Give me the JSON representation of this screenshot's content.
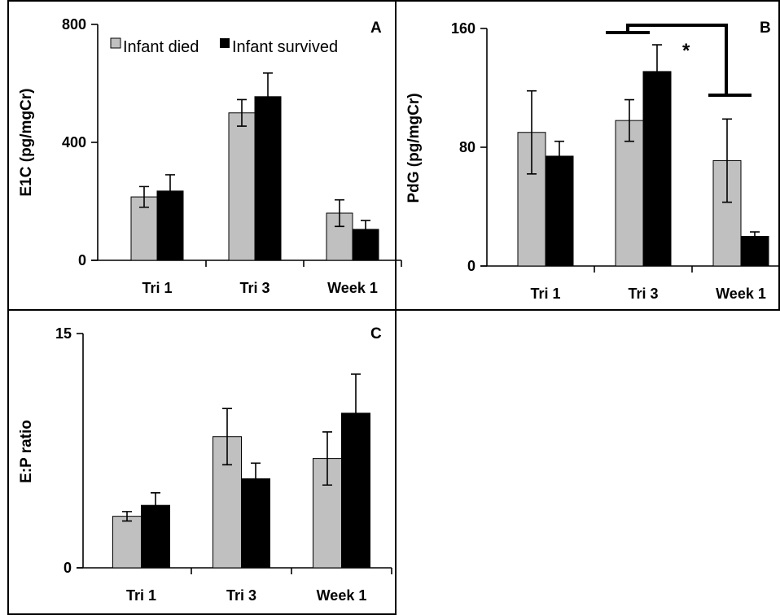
{
  "chart_data": [
    {
      "type": "bar",
      "panel_label": "A",
      "title": "",
      "xlabel": "",
      "ylabel": "E1C (pg/mgCr)",
      "ylim": [
        0,
        800
      ],
      "yticks": [
        "0",
        "400",
        "800"
      ],
      "categories": [
        "Tri 1",
        "Tri 3",
        "Week 1"
      ],
      "legend": {
        "placement": "top",
        "entries": [
          "Infant died",
          "Infant survived"
        ]
      },
      "series": [
        {
          "name": "Infant died",
          "color": "#c0c0c0",
          "values": [
            215,
            500,
            160
          ],
          "errors": [
            35,
            45,
            45
          ]
        },
        {
          "name": "Infant survived",
          "color": "#000000",
          "values": [
            235,
            555,
            105
          ],
          "errors": [
            55,
            80,
            30
          ]
        }
      ]
    },
    {
      "type": "bar",
      "panel_label": "B",
      "title": "",
      "xlabel": "",
      "ylabel": "PdG (pg/mgCr)",
      "ylim": [
        0,
        160
      ],
      "yticks": [
        "0",
        "80",
        "160"
      ],
      "categories": [
        "Tri 1",
        "Tri 3",
        "Week 1"
      ],
      "series": [
        {
          "name": "Infant died",
          "color": "#c0c0c0",
          "values": [
            90,
            98,
            71
          ],
          "errors": [
            28,
            14,
            28
          ]
        },
        {
          "name": "Infant survived",
          "color": "#000000",
          "values": [
            74,
            131,
            20
          ],
          "errors": [
            10,
            18,
            3
          ]
        }
      ],
      "annotation": "*"
    },
    {
      "type": "bar",
      "panel_label": "C",
      "title": "",
      "xlabel": "",
      "ylabel": "E:P ratio",
      "ylim": [
        0,
        15
      ],
      "yticks": [
        "0",
        "15"
      ],
      "categories": [
        "Tri 1",
        "Tri 3",
        "Week 1"
      ],
      "series": [
        {
          "name": "Infant died",
          "color": "#c0c0c0",
          "values": [
            3.3,
            8.4,
            7.0
          ],
          "errors": [
            0.3,
            1.8,
            1.7
          ]
        },
        {
          "name": "Infant survived",
          "color": "#000000",
          "values": [
            4.0,
            5.7,
            9.9
          ],
          "errors": [
            0.8,
            1.0,
            2.5
          ]
        }
      ]
    }
  ]
}
